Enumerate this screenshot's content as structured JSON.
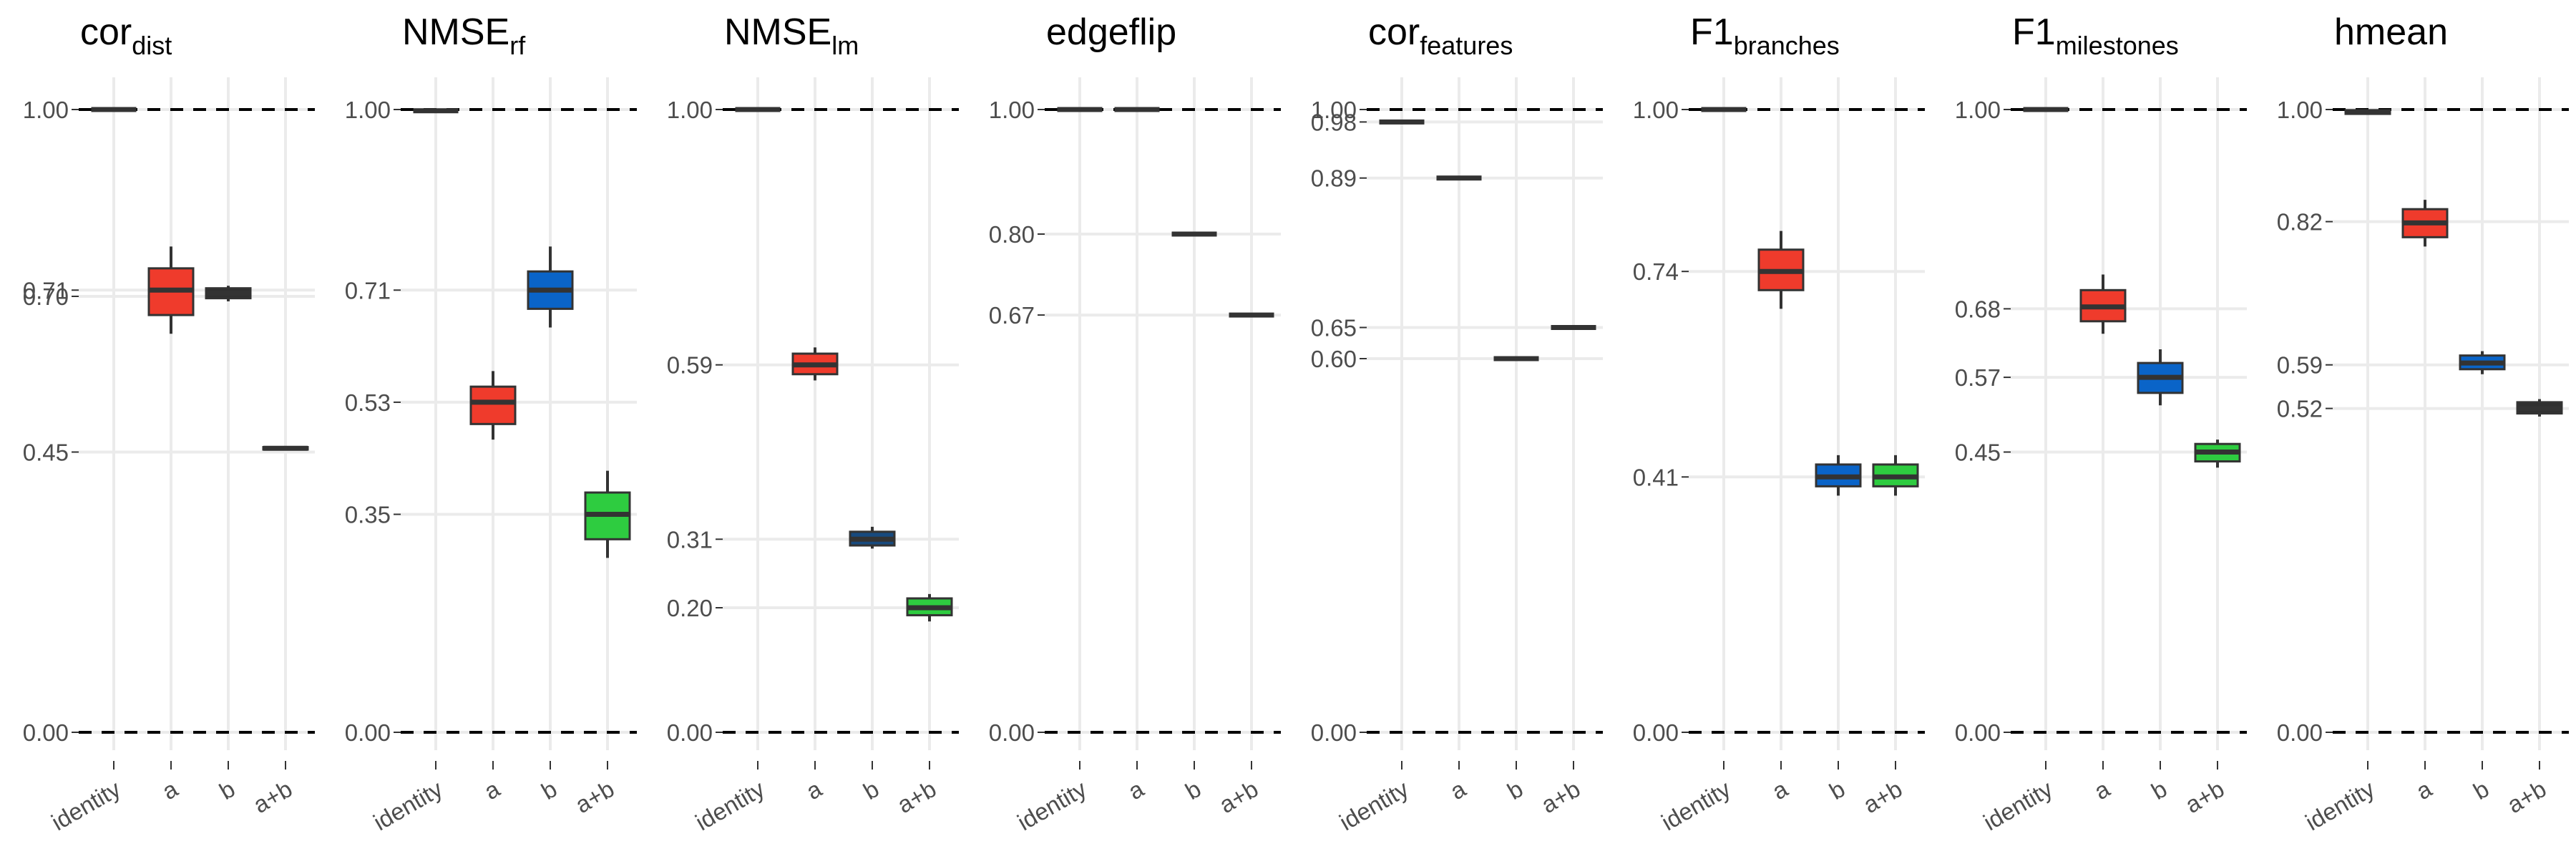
{
  "chart_data": [
    {
      "type": "box",
      "title": "cor",
      "title_sub": "dist",
      "categories": [
        "identity",
        "a",
        "b",
        "a+b"
      ],
      "yticks": [
        "0.00",
        "0.45",
        "0.70",
        "0.71",
        "1.00"
      ],
      "ylim": [
        0,
        1
      ],
      "reference_lines": [
        0,
        1
      ],
      "boxes": [
        {
          "category": "identity",
          "color": "",
          "q1": 1.0,
          "median": 1.0,
          "q3": 1.0,
          "min": 1.0,
          "max": 1.0
        },
        {
          "category": "a",
          "color": "#ef3b2c",
          "q1": 0.67,
          "median": 0.71,
          "q3": 0.745,
          "min": 0.64,
          "max": 0.78
        },
        {
          "category": "b",
          "color": "#303030",
          "q1": 0.697,
          "median": 0.705,
          "q3": 0.713,
          "min": 0.692,
          "max": 0.717
        },
        {
          "category": "a+b",
          "color": "#303030",
          "q1": 0.454,
          "median": 0.456,
          "q3": 0.458,
          "min": 0.454,
          "max": 0.458
        }
      ]
    },
    {
      "type": "box",
      "title": "NMSE",
      "title_sub": "rf",
      "categories": [
        "identity",
        "a",
        "b",
        "a+b"
      ],
      "yticks": [
        "0.00",
        "0.35",
        "0.53",
        "0.71",
        "1.00"
      ],
      "ylim": [
        0,
        1
      ],
      "reference_lines": [
        0,
        1
      ],
      "boxes": [
        {
          "category": "identity",
          "color": "",
          "q1": 0.997,
          "median": 0.998,
          "q3": 0.999,
          "min": 0.997,
          "max": 0.999
        },
        {
          "category": "a",
          "color": "#ef3b2c",
          "q1": 0.495,
          "median": 0.53,
          "q3": 0.555,
          "min": 0.47,
          "max": 0.58
        },
        {
          "category": "b",
          "color": "#0a64c8",
          "q1": 0.68,
          "median": 0.71,
          "q3": 0.74,
          "min": 0.65,
          "max": 0.78
        },
        {
          "category": "a+b",
          "color": "#2ecc40",
          "q1": 0.31,
          "median": 0.35,
          "q3": 0.385,
          "min": 0.28,
          "max": 0.42
        }
      ]
    },
    {
      "type": "box",
      "title": "NMSE",
      "title_sub": "lm",
      "categories": [
        "identity",
        "a",
        "b",
        "a+b"
      ],
      "yticks": [
        "0.00",
        "0.20",
        "0.31",
        "0.59",
        "1.00"
      ],
      "ylim": [
        0,
        1
      ],
      "reference_lines": [
        0,
        1
      ],
      "boxes": [
        {
          "category": "identity",
          "color": "",
          "q1": 1.0,
          "median": 1.0,
          "q3": 1.0,
          "min": 1.0,
          "max": 1.0
        },
        {
          "category": "a",
          "color": "#ef3b2c",
          "q1": 0.575,
          "median": 0.59,
          "q3": 0.608,
          "min": 0.565,
          "max": 0.618
        },
        {
          "category": "b",
          "color": "#174a7e",
          "q1": 0.3,
          "median": 0.31,
          "q3": 0.322,
          "min": 0.295,
          "max": 0.33
        },
        {
          "category": "a+b",
          "color": "#2ecc40",
          "q1": 0.188,
          "median": 0.2,
          "q3": 0.215,
          "min": 0.178,
          "max": 0.222
        }
      ]
    },
    {
      "type": "box",
      "title": "edgeflip",
      "title_sub": "",
      "categories": [
        "identity",
        "a",
        "b",
        "a+b"
      ],
      "yticks": [
        "0.00",
        "0.67",
        "0.80",
        "1.00"
      ],
      "ylim": [
        0,
        1
      ],
      "reference_lines": [
        0,
        1
      ],
      "boxes": [
        {
          "category": "identity",
          "color": "",
          "q1": 1.0,
          "median": 1.0,
          "q3": 1.0,
          "min": 1.0,
          "max": 1.0
        },
        {
          "category": "a",
          "color": "",
          "q1": 1.0,
          "median": 1.0,
          "q3": 1.0,
          "min": 1.0,
          "max": 1.0
        },
        {
          "category": "b",
          "color": "",
          "q1": 0.8,
          "median": 0.8,
          "q3": 0.8,
          "min": 0.8,
          "max": 0.8
        },
        {
          "category": "a+b",
          "color": "",
          "q1": 0.67,
          "median": 0.67,
          "q3": 0.67,
          "min": 0.67,
          "max": 0.67
        }
      ]
    },
    {
      "type": "box",
      "title": "cor",
      "title_sub": "features",
      "categories": [
        "identity",
        "a",
        "b",
        "a+b"
      ],
      "yticks": [
        "0.00",
        "0.60",
        "0.65",
        "0.89",
        "0.98",
        "1.00"
      ],
      "ylim": [
        0,
        1
      ],
      "reference_lines": [
        0,
        1
      ],
      "boxes": [
        {
          "category": "identity",
          "color": "",
          "q1": 0.98,
          "median": 0.98,
          "q3": 0.98,
          "min": 0.98,
          "max": 0.98
        },
        {
          "category": "a",
          "color": "",
          "q1": 0.89,
          "median": 0.89,
          "q3": 0.89,
          "min": 0.89,
          "max": 0.89
        },
        {
          "category": "b",
          "color": "",
          "q1": 0.6,
          "median": 0.6,
          "q3": 0.6,
          "min": 0.6,
          "max": 0.6
        },
        {
          "category": "a+b",
          "color": "",
          "q1": 0.65,
          "median": 0.65,
          "q3": 0.65,
          "min": 0.65,
          "max": 0.65
        }
      ]
    },
    {
      "type": "box",
      "title": "F1",
      "title_sub": "branches",
      "categories": [
        "identity",
        "a",
        "b",
        "a+b"
      ],
      "yticks": [
        "0.00",
        "0.41",
        "0.74",
        "1.00"
      ],
      "ylim": [
        0,
        1
      ],
      "reference_lines": [
        0,
        1
      ],
      "boxes": [
        {
          "category": "identity",
          "color": "",
          "q1": 1.0,
          "median": 1.0,
          "q3": 1.0,
          "min": 1.0,
          "max": 1.0
        },
        {
          "category": "a",
          "color": "#ef3b2c",
          "q1": 0.71,
          "median": 0.74,
          "q3": 0.775,
          "min": 0.68,
          "max": 0.805
        },
        {
          "category": "b",
          "color": "#0a64c8",
          "q1": 0.395,
          "median": 0.41,
          "q3": 0.43,
          "min": 0.38,
          "max": 0.445
        },
        {
          "category": "a+b",
          "color": "#2ecc40",
          "q1": 0.395,
          "median": 0.41,
          "q3": 0.43,
          "min": 0.38,
          "max": 0.445
        }
      ]
    },
    {
      "type": "box",
      "title": "F1",
      "title_sub": "milestones",
      "categories": [
        "identity",
        "a",
        "b",
        "a+b"
      ],
      "yticks": [
        "0.00",
        "0.45",
        "0.57",
        "0.68",
        "1.00"
      ],
      "ylim": [
        0,
        1
      ],
      "reference_lines": [
        0,
        1
      ],
      "boxes": [
        {
          "category": "identity",
          "color": "",
          "q1": 1.0,
          "median": 1.0,
          "q3": 1.0,
          "min": 1.0,
          "max": 1.0
        },
        {
          "category": "a",
          "color": "#ef3b2c",
          "q1": 0.66,
          "median": 0.683,
          "q3": 0.71,
          "min": 0.64,
          "max": 0.735
        },
        {
          "category": "b",
          "color": "#0a64c8",
          "q1": 0.545,
          "median": 0.57,
          "q3": 0.593,
          "min": 0.525,
          "max": 0.615
        },
        {
          "category": "a+b",
          "color": "#2ecc40",
          "q1": 0.435,
          "median": 0.45,
          "q3": 0.463,
          "min": 0.425,
          "max": 0.47
        }
      ]
    },
    {
      "type": "box",
      "title": "hmean",
      "title_sub": "",
      "categories": [
        "identity",
        "a",
        "b",
        "a+b"
      ],
      "yticks": [
        "0.00",
        "0.52",
        "0.59",
        "0.82",
        "1.00"
      ],
      "ylim": [
        0,
        1
      ],
      "reference_lines": [
        0,
        1
      ],
      "boxes": [
        {
          "category": "identity",
          "color": "",
          "q1": 0.993,
          "median": 0.996,
          "q3": 0.999,
          "min": 0.992,
          "max": 1.0
        },
        {
          "category": "a",
          "color": "#ef3b2c",
          "q1": 0.795,
          "median": 0.818,
          "q3": 0.84,
          "min": 0.78,
          "max": 0.855
        },
        {
          "category": "b",
          "color": "#0a64c8",
          "q1": 0.583,
          "median": 0.593,
          "q3": 0.605,
          "min": 0.575,
          "max": 0.612
        },
        {
          "category": "a+b",
          "color": "#303030",
          "q1": 0.512,
          "median": 0.52,
          "q3": 0.53,
          "min": 0.507,
          "max": 0.535
        }
      ]
    }
  ]
}
